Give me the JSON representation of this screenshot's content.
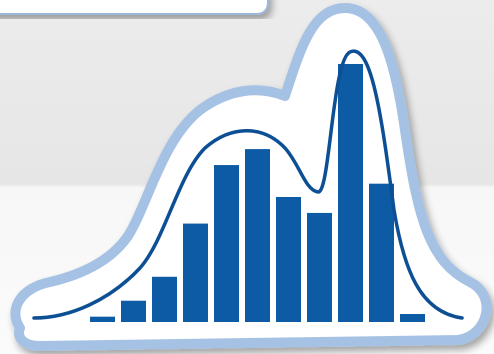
{
  "colors": {
    "background_top": "#ebebeb",
    "background_bottom": "#fafafa",
    "bar_fill": "#0d5aa5",
    "curve_stroke": "#0d4f94",
    "sticker_outline": "#a5c2e4",
    "sticker_fill": "#ffffff",
    "card_edge": "#9bb8da"
  },
  "icon": {
    "name": "histogram-with-density-curve-sticker-icon",
    "bar_levels": [
      0.02,
      0.08,
      0.17,
      0.37,
      0.59,
      0.65,
      0.47,
      0.41,
      0.97,
      0.52,
      0.03
    ],
    "bar_count": 11
  }
}
